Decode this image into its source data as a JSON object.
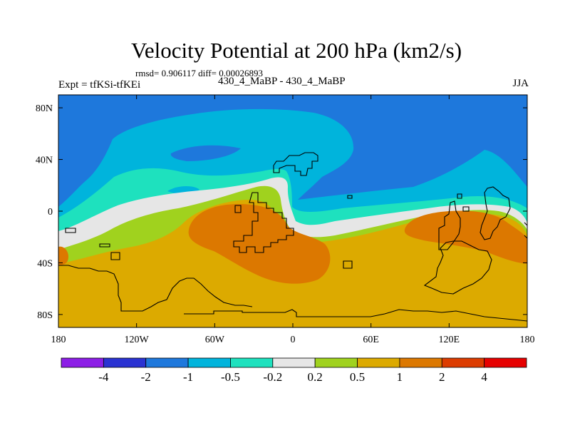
{
  "title": "Velocity Potential at 200 hPa (km2/s)",
  "stats": "rmsd= 0.906117 diff= 0.00026893",
  "left_label": "Expt = tfKSi-tfKEi",
  "center_label": "430_4_MaBP - 430_4_MaBP",
  "right_label": "JJA",
  "chart_data": {
    "type": "heatmap",
    "title": "Velocity Potential at 200 hPa (km2/s)",
    "xlabel": "",
    "ylabel": "",
    "xlim": [
      -180,
      180
    ],
    "ylim": [
      -90,
      90
    ],
    "x_ticks": [
      {
        "value": -180,
        "label": "180"
      },
      {
        "value": -120,
        "label": "120W"
      },
      {
        "value": -60,
        "label": "60W"
      },
      {
        "value": 0,
        "label": "0"
      },
      {
        "value": 60,
        "label": "60E"
      },
      {
        "value": 120,
        "label": "120E"
      },
      {
        "value": 180,
        "label": "180"
      }
    ],
    "y_ticks": [
      {
        "value": 80,
        "label": "80N"
      },
      {
        "value": 40,
        "label": "40N"
      },
      {
        "value": 0,
        "label": "0"
      },
      {
        "value": -40,
        "label": "40S"
      },
      {
        "value": -80,
        "label": "80S"
      }
    ],
    "colorbar": {
      "levels": [
        "-4",
        "-2",
        "-1",
        "-0.5",
        "-0.2",
        "0.2",
        "0.5",
        "1",
        "2",
        "4"
      ],
      "colors": [
        "#8c1ee6",
        "#2a32d2",
        "#1e78dc",
        "#00b4dc",
        "#1ee1be",
        "#e6e6e6",
        "#a0d21e",
        "#dcaa00",
        "#dc7800",
        "#dc3c00",
        "#e60000"
      ]
    },
    "regions": [
      {
        "name": "negative-potential-north",
        "value_range": "-2 to -1",
        "color": "#1e78dc"
      },
      {
        "name": "weak-negative-band",
        "value_range": "-1 to -0.5",
        "color": "#00b4dc"
      },
      {
        "name": "near-zero-belt",
        "value_range": "-0.2 to 0.2",
        "color": "#e6e6e6"
      },
      {
        "name": "positive-southern-hemisphere",
        "value_range": "0.5 to 1",
        "color": "#dcaa00"
      },
      {
        "name": "positive-maximum-atlantic",
        "value_range": "1 to 2",
        "color": "#dc7800"
      },
      {
        "name": "positive-maximum-indian-ocean",
        "value_range": "1 to 2",
        "color": "#dc7800"
      }
    ]
  }
}
